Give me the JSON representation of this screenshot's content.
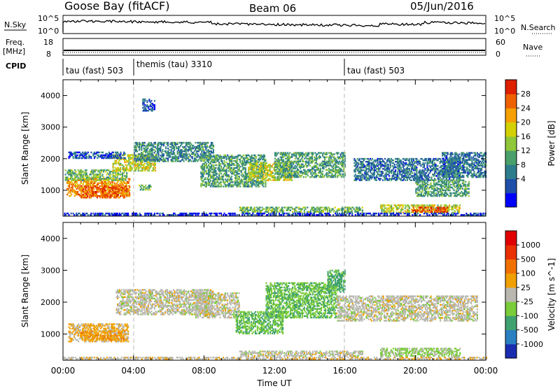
{
  "header": {
    "station": "Goose Bay (fitACF)",
    "beam": "Beam 06",
    "date": "05/Jun/2016"
  },
  "nsky_panel": {
    "left_label": "N.Sky",
    "right_label": "N.Search",
    "left_ticks": [
      "10^5",
      "10^0"
    ],
    "right_ticks": [
      "10^5",
      "10^0"
    ]
  },
  "freq_panel": {
    "left_label_1": "Freq.",
    "left_label_2": "[MHz]",
    "right_label": "Nave",
    "left_ticks": [
      "18",
      "8"
    ],
    "right_ticks": [
      "60",
      "0"
    ]
  },
  "cpid": {
    "label": "CPID",
    "segments": [
      {
        "start_h": 0.0,
        "end_h": 4.0,
        "label": "tau (fast) 503"
      },
      {
        "start_h": 4.0,
        "end_h": 16.0,
        "label": "themis (tau) 3310"
      },
      {
        "start_h": 16.0,
        "end_h": 24.0,
        "label": "tau (fast) 503"
      }
    ]
  },
  "power_colorbar": {
    "label": "Power [dB]",
    "ticks": [
      "28",
      "24",
      "20",
      "16",
      "12",
      "8",
      "4"
    ],
    "colors": [
      "#0000ff",
      "#1f4fa8",
      "#2e7d8c",
      "#4aa06a",
      "#8fc63a",
      "#d4d000",
      "#f5a000",
      "#ee6000",
      "#dd2000"
    ]
  },
  "velocity_colorbar": {
    "label": "Velocity [m s^-1]",
    "ticks": [
      "1000",
      "500",
      "100",
      "25",
      "-25",
      "-100",
      "-500",
      "-1000"
    ],
    "colors": [
      "#1a2db0",
      "#2a7fc0",
      "#3fa070",
      "#7acc3a",
      "#b8b8b0",
      "#f0a000",
      "#f07000",
      "#e83000",
      "#e00000"
    ]
  },
  "shared_axes": {
    "xlabel": "Time UT",
    "ylabel": "Slant Range [km]",
    "x_ticks": [
      "00:00",
      "04:00",
      "08:00",
      "12:00",
      "16:00",
      "20:00",
      "00:00"
    ],
    "y_ticks": [
      "1000",
      "2000",
      "3000",
      "4000"
    ]
  },
  "chart_data": [
    {
      "type": "heatmap",
      "title": "",
      "xlabel": "",
      "ylabel": "Slant Range [km]",
      "xlim": [
        0,
        24
      ],
      "ylim": [
        180,
        4500
      ],
      "colorbar_label": "Power [dB]",
      "colorbar_range": [
        0,
        32
      ],
      "regions": [
        {
          "t0": 0.2,
          "t1": 3.8,
          "r0": 800,
          "r1": 1350,
          "v": 24
        },
        {
          "t0": 1.0,
          "t1": 3.6,
          "r0": 750,
          "r1": 1150,
          "v": 27
        },
        {
          "t0": 0.1,
          "t1": 3.6,
          "r0": 1300,
          "r1": 1650,
          "v": 14
        },
        {
          "t0": 2.8,
          "t1": 5.2,
          "r0": 1600,
          "r1": 2100,
          "v": 18
        },
        {
          "t0": 4.0,
          "t1": 8.5,
          "r0": 1900,
          "r1": 2500,
          "v": 10
        },
        {
          "t0": 4.3,
          "t1": 5.0,
          "r0": 1000,
          "r1": 1150,
          "v": 14
        },
        {
          "t0": 7.8,
          "t1": 11.5,
          "r0": 1100,
          "r1": 2100,
          "v": 12
        },
        {
          "t0": 10.5,
          "t1": 13.0,
          "r0": 1300,
          "r1": 1850,
          "v": 18
        },
        {
          "t0": 12.0,
          "t1": 16.0,
          "r0": 1400,
          "r1": 2200,
          "v": 12
        },
        {
          "t0": 10.0,
          "t1": 17.0,
          "r0": 300,
          "r1": 460,
          "v": 14
        },
        {
          "t0": 16.5,
          "t1": 22.5,
          "r0": 1300,
          "r1": 2000,
          "v": 8
        },
        {
          "t0": 18.0,
          "t1": 22.5,
          "r0": 280,
          "r1": 520,
          "v": 18
        },
        {
          "t0": 19.8,
          "t1": 21.8,
          "r0": 300,
          "r1": 480,
          "v": 28
        },
        {
          "t0": 20.0,
          "t1": 23.0,
          "r0": 800,
          "r1": 1300,
          "v": 12
        },
        {
          "t0": 21.5,
          "t1": 24.0,
          "r0": 1400,
          "r1": 2200,
          "v": 8
        },
        {
          "t0": 4.5,
          "t1": 5.2,
          "r0": 3500,
          "r1": 3900,
          "v": 6
        },
        {
          "t0": 0.3,
          "t1": 3.5,
          "r0": 2000,
          "r1": 2200,
          "v": 6
        },
        {
          "t0": 0.0,
          "t1": 24.0,
          "r0": 200,
          "r1": 280,
          "v": 4
        }
      ]
    },
    {
      "type": "heatmap",
      "title": "",
      "xlabel": "Time UT",
      "ylabel": "Slant Range [km]",
      "xlim": [
        0,
        24
      ],
      "ylim": [
        180,
        4500
      ],
      "colorbar_label": "Velocity [m s^-1]",
      "colorbar_range": [
        -1000,
        1000
      ],
      "regions": [
        {
          "t0": 0.3,
          "t1": 3.7,
          "r0": 750,
          "r1": 1300,
          "v": 150
        },
        {
          "t0": 1.0,
          "t1": 3.5,
          "r0": 800,
          "r1": 1100,
          "v": 250
        },
        {
          "t0": 3.0,
          "t1": 8.5,
          "r0": 1600,
          "r1": 2400,
          "v": 0
        },
        {
          "t0": 7.5,
          "t1": 10.0,
          "r0": 1500,
          "r1": 2300,
          "v": 0
        },
        {
          "t0": 9.8,
          "t1": 12.5,
          "r0": 1000,
          "r1": 1700,
          "v": -300
        },
        {
          "t0": 11.5,
          "t1": 15.5,
          "r0": 1500,
          "r1": 2600,
          "v": -300
        },
        {
          "t0": 15.0,
          "t1": 16.0,
          "r0": 2300,
          "r1": 3000,
          "v": -400
        },
        {
          "t0": 15.5,
          "t1": 23.5,
          "r0": 1400,
          "r1": 2200,
          "v": 0
        },
        {
          "t0": 18.0,
          "t1": 22.5,
          "r0": 300,
          "r1": 550,
          "v": -150
        },
        {
          "t0": 10.0,
          "t1": 17.0,
          "r0": 300,
          "r1": 450,
          "v": 0
        },
        {
          "t0": 0.0,
          "t1": 24.0,
          "r0": 200,
          "r1": 280,
          "v": 50
        }
      ]
    }
  ]
}
